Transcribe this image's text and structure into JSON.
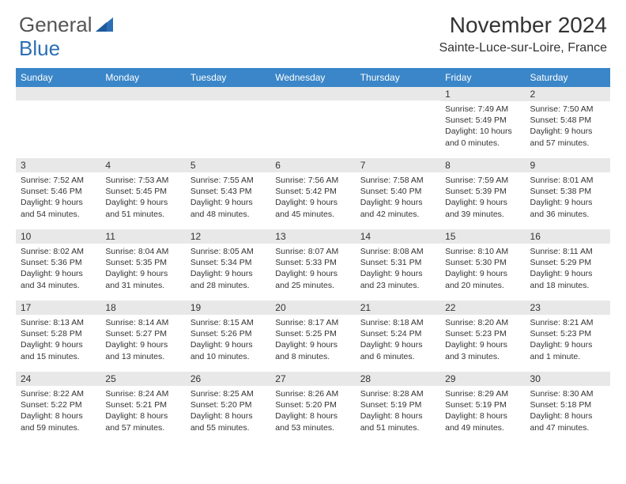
{
  "logo": {
    "part1": "General",
    "part2": "Blue"
  },
  "title": "November 2024",
  "location": "Sainte-Luce-sur-Loire, France",
  "colors": {
    "header_bg": "#3a86c8",
    "header_text": "#ffffff",
    "daynum_bg": "#e8e8e8",
    "text": "#333333",
    "logo_gray": "#555555",
    "logo_blue": "#2d6fb5",
    "page_bg": "#ffffff"
  },
  "weekdays": [
    "Sunday",
    "Monday",
    "Tuesday",
    "Wednesday",
    "Thursday",
    "Friday",
    "Saturday"
  ],
  "weeks": [
    [
      {
        "n": "",
        "sunrise": "",
        "sunset": "",
        "daylight": ""
      },
      {
        "n": "",
        "sunrise": "",
        "sunset": "",
        "daylight": ""
      },
      {
        "n": "",
        "sunrise": "",
        "sunset": "",
        "daylight": ""
      },
      {
        "n": "",
        "sunrise": "",
        "sunset": "",
        "daylight": ""
      },
      {
        "n": "",
        "sunrise": "",
        "sunset": "",
        "daylight": ""
      },
      {
        "n": "1",
        "sunrise": "Sunrise: 7:49 AM",
        "sunset": "Sunset: 5:49 PM",
        "daylight": "Daylight: 10 hours and 0 minutes."
      },
      {
        "n": "2",
        "sunrise": "Sunrise: 7:50 AM",
        "sunset": "Sunset: 5:48 PM",
        "daylight": "Daylight: 9 hours and 57 minutes."
      }
    ],
    [
      {
        "n": "3",
        "sunrise": "Sunrise: 7:52 AM",
        "sunset": "Sunset: 5:46 PM",
        "daylight": "Daylight: 9 hours and 54 minutes."
      },
      {
        "n": "4",
        "sunrise": "Sunrise: 7:53 AM",
        "sunset": "Sunset: 5:45 PM",
        "daylight": "Daylight: 9 hours and 51 minutes."
      },
      {
        "n": "5",
        "sunrise": "Sunrise: 7:55 AM",
        "sunset": "Sunset: 5:43 PM",
        "daylight": "Daylight: 9 hours and 48 minutes."
      },
      {
        "n": "6",
        "sunrise": "Sunrise: 7:56 AM",
        "sunset": "Sunset: 5:42 PM",
        "daylight": "Daylight: 9 hours and 45 minutes."
      },
      {
        "n": "7",
        "sunrise": "Sunrise: 7:58 AM",
        "sunset": "Sunset: 5:40 PM",
        "daylight": "Daylight: 9 hours and 42 minutes."
      },
      {
        "n": "8",
        "sunrise": "Sunrise: 7:59 AM",
        "sunset": "Sunset: 5:39 PM",
        "daylight": "Daylight: 9 hours and 39 minutes."
      },
      {
        "n": "9",
        "sunrise": "Sunrise: 8:01 AM",
        "sunset": "Sunset: 5:38 PM",
        "daylight": "Daylight: 9 hours and 36 minutes."
      }
    ],
    [
      {
        "n": "10",
        "sunrise": "Sunrise: 8:02 AM",
        "sunset": "Sunset: 5:36 PM",
        "daylight": "Daylight: 9 hours and 34 minutes."
      },
      {
        "n": "11",
        "sunrise": "Sunrise: 8:04 AM",
        "sunset": "Sunset: 5:35 PM",
        "daylight": "Daylight: 9 hours and 31 minutes."
      },
      {
        "n": "12",
        "sunrise": "Sunrise: 8:05 AM",
        "sunset": "Sunset: 5:34 PM",
        "daylight": "Daylight: 9 hours and 28 minutes."
      },
      {
        "n": "13",
        "sunrise": "Sunrise: 8:07 AM",
        "sunset": "Sunset: 5:33 PM",
        "daylight": "Daylight: 9 hours and 25 minutes."
      },
      {
        "n": "14",
        "sunrise": "Sunrise: 8:08 AM",
        "sunset": "Sunset: 5:31 PM",
        "daylight": "Daylight: 9 hours and 23 minutes."
      },
      {
        "n": "15",
        "sunrise": "Sunrise: 8:10 AM",
        "sunset": "Sunset: 5:30 PM",
        "daylight": "Daylight: 9 hours and 20 minutes."
      },
      {
        "n": "16",
        "sunrise": "Sunrise: 8:11 AM",
        "sunset": "Sunset: 5:29 PM",
        "daylight": "Daylight: 9 hours and 18 minutes."
      }
    ],
    [
      {
        "n": "17",
        "sunrise": "Sunrise: 8:13 AM",
        "sunset": "Sunset: 5:28 PM",
        "daylight": "Daylight: 9 hours and 15 minutes."
      },
      {
        "n": "18",
        "sunrise": "Sunrise: 8:14 AM",
        "sunset": "Sunset: 5:27 PM",
        "daylight": "Daylight: 9 hours and 13 minutes."
      },
      {
        "n": "19",
        "sunrise": "Sunrise: 8:15 AM",
        "sunset": "Sunset: 5:26 PM",
        "daylight": "Daylight: 9 hours and 10 minutes."
      },
      {
        "n": "20",
        "sunrise": "Sunrise: 8:17 AM",
        "sunset": "Sunset: 5:25 PM",
        "daylight": "Daylight: 9 hours and 8 minutes."
      },
      {
        "n": "21",
        "sunrise": "Sunrise: 8:18 AM",
        "sunset": "Sunset: 5:24 PM",
        "daylight": "Daylight: 9 hours and 6 minutes."
      },
      {
        "n": "22",
        "sunrise": "Sunrise: 8:20 AM",
        "sunset": "Sunset: 5:23 PM",
        "daylight": "Daylight: 9 hours and 3 minutes."
      },
      {
        "n": "23",
        "sunrise": "Sunrise: 8:21 AM",
        "sunset": "Sunset: 5:23 PM",
        "daylight": "Daylight: 9 hours and 1 minute."
      }
    ],
    [
      {
        "n": "24",
        "sunrise": "Sunrise: 8:22 AM",
        "sunset": "Sunset: 5:22 PM",
        "daylight": "Daylight: 8 hours and 59 minutes."
      },
      {
        "n": "25",
        "sunrise": "Sunrise: 8:24 AM",
        "sunset": "Sunset: 5:21 PM",
        "daylight": "Daylight: 8 hours and 57 minutes."
      },
      {
        "n": "26",
        "sunrise": "Sunrise: 8:25 AM",
        "sunset": "Sunset: 5:20 PM",
        "daylight": "Daylight: 8 hours and 55 minutes."
      },
      {
        "n": "27",
        "sunrise": "Sunrise: 8:26 AM",
        "sunset": "Sunset: 5:20 PM",
        "daylight": "Daylight: 8 hours and 53 minutes."
      },
      {
        "n": "28",
        "sunrise": "Sunrise: 8:28 AM",
        "sunset": "Sunset: 5:19 PM",
        "daylight": "Daylight: 8 hours and 51 minutes."
      },
      {
        "n": "29",
        "sunrise": "Sunrise: 8:29 AM",
        "sunset": "Sunset: 5:19 PM",
        "daylight": "Daylight: 8 hours and 49 minutes."
      },
      {
        "n": "30",
        "sunrise": "Sunrise: 8:30 AM",
        "sunset": "Sunset: 5:18 PM",
        "daylight": "Daylight: 8 hours and 47 minutes."
      }
    ]
  ]
}
